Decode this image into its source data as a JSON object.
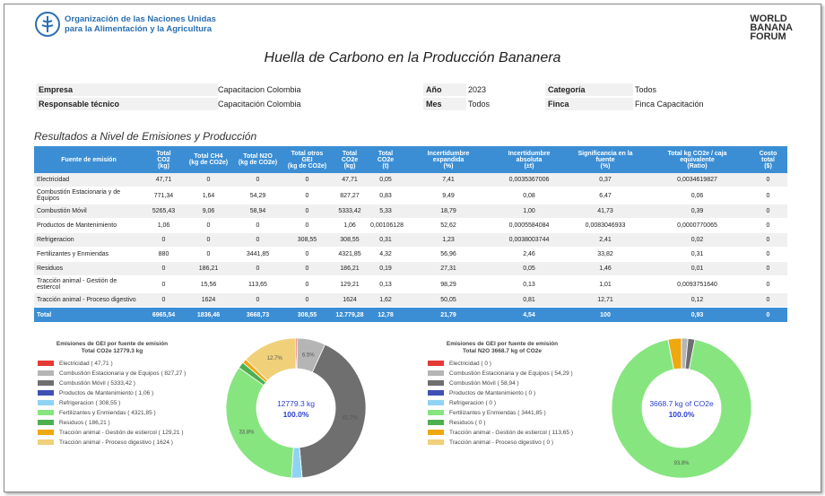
{
  "header": {
    "org_lines": [
      "Organización de las Naciones Unidas",
      "para la Alimentación y la Agricultura"
    ],
    "logo_lines": [
      "WORLD",
      "BANANA",
      "FORUM"
    ]
  },
  "title": "Huella de Carbono en la Producción Bananera",
  "info": {
    "rows": [
      [
        {
          "label": "Empresa",
          "value": "Capacitacion Colombia"
        },
        {
          "label": "Año",
          "value": "2023"
        },
        {
          "label": "Categoría",
          "value": "Todos"
        }
      ],
      [
        {
          "label": "Responsable técnico",
          "value": "Capacitación Colombia"
        },
        {
          "label": "Mes",
          "value": "Todos"
        },
        {
          "label": "Finca",
          "value": "Finca Capacitación"
        }
      ]
    ]
  },
  "section_title": "Resultados a Nivel de Emisiones y Producción",
  "table": {
    "columns": [
      "Fuente de emisión",
      "Total\nCO2\n(kg)",
      "Total CH4\n(kg de CO2e)",
      "Total N2O\n(kg de CO2e)",
      "Total otros\nGEI\n(kg de CO2e)",
      "Total\nCO2e\n(kg)",
      "Total\nCO2e\n(t)",
      "Incertidumbre\nexpandida\n(%)",
      "Incertidumbre\nabsoluta\n(±t)",
      "Significancia en la\nfuente\n(%)",
      "Total kg CO2e / caja\nequivalente\n(Ratio)",
      "Costo\ntotal\n($)"
    ],
    "rows": [
      [
        "Electricidad",
        "47,71",
        "0",
        "0",
        "0",
        "47,71",
        "0,05",
        "7,41",
        "0,0035367006",
        "0,37",
        "0,0034619827",
        "0"
      ],
      [
        "Combustión Estacionaria y de Equipos",
        "771,34",
        "1,64",
        "54,29",
        "0",
        "827,27",
        "0,83",
        "9,49",
        "0,08",
        "6,47",
        "0,06",
        "0"
      ],
      [
        "Combustión Móvil",
        "5265,43",
        "9,06",
        "58,94",
        "0",
        "5333,42",
        "5,33",
        "18,79",
        "1,00",
        "41,73",
        "0,39",
        "0"
      ],
      [
        "Productos de Mantenimiento",
        "1,06",
        "0",
        "0",
        "0",
        "1,06",
        "0,00106128",
        "52,62",
        "0,0005584084",
        "0,0083046933",
        "0,0000770065",
        "0"
      ],
      [
        "Refrigeracion",
        "0",
        "0",
        "0",
        "308,55",
        "308,55",
        "0,31",
        "1,23",
        "0,0038003744",
        "2,41",
        "0,02",
        "0"
      ],
      [
        "Fertilizantes y Enmiendas",
        "880",
        "0",
        "3441,85",
        "0",
        "4321,85",
        "4,32",
        "56,96",
        "2,46",
        "33,82",
        "0,31",
        "0"
      ],
      [
        "Residuos",
        "0",
        "186,21",
        "0",
        "0",
        "186,21",
        "0,19",
        "27,31",
        "0,05",
        "1,46",
        "0,01",
        "0"
      ],
      [
        "Tracción animal - Gestión de estiercol",
        "0",
        "15,56",
        "113,65",
        "0",
        "129,21",
        "0,13",
        "98,29",
        "0,13",
        "1,01",
        "0,0093751640",
        "0"
      ],
      [
        "Tracción animal - Proceso digestivo",
        "0",
        "1624",
        "0",
        "0",
        "1624",
        "1,62",
        "50,05",
        "0,81",
        "12,71",
        "0,12",
        "0"
      ]
    ],
    "total": [
      "Total",
      "6965,54",
      "1836,46",
      "3668,73",
      "308,55",
      "12.779,28",
      "12,78",
      "21,79",
      "4,54",
      "100",
      "0,93",
      "0"
    ]
  },
  "chart_data": [
    {
      "type": "pie",
      "title": [
        "Emisiones de GEI por fuente de emisión",
        "Total CO2e   12779.3 kg"
      ],
      "categories": [
        "Electricidad  ( 47,71 )",
        "Combustión Estacionaria y de Equipos  ( 827,27 )",
        "Combustión Móvil  ( 5333,42 )",
        "Productos de Mantenimiento  ( 1,06 )",
        "Refrigeracion  ( 308,55 )",
        "Fertilizantes y Enmiendas  ( 4321,85 )",
        "Residuos  ( 186,21 )",
        "Tracción animal - Gestión de estiercol  ( 129,21 )",
        "Tracción animal - Proceso digestivo  ( 1624 )"
      ],
      "values": [
        47.71,
        827.27,
        5333.42,
        1.06,
        308.55,
        4321.85,
        186.21,
        129.21,
        1624
      ],
      "colors": [
        "#e53935",
        "#b5b5b5",
        "#6f6f6f",
        "#3f51b5",
        "#8fd3f4",
        "#86e57f",
        "#4caf50",
        "#efa810",
        "#f1d07a"
      ],
      "percent_labels": [
        null,
        "6.5%",
        "41.7%",
        null,
        null,
        "33.8%",
        null,
        null,
        "12.7%"
      ],
      "center_value": "12779.3 kg",
      "center_percent": "100.0%"
    },
    {
      "type": "pie",
      "title": [
        "Emisiones de GEI por fuente de emisión",
        "Total N2O   3668.7 kg of CO2e"
      ],
      "categories": [
        "Electricidad  ( 0 )",
        "Combustión Estacionaria y de Equipos  ( 54,29 )",
        "Combustión Móvil  ( 58,94 )",
        "Productos de Mantenimiento  ( 0 )",
        "Refrigeracion  ( 0 )",
        "Fertilizantes y Enmiendas  ( 3441,85 )",
        "Residuos  ( 0 )",
        "Tracción animal - Gestión de estiercol  ( 113,65 )",
        "Tracción animal - Proceso digestivo  ( 0 )"
      ],
      "values": [
        0,
        54.29,
        58.94,
        0,
        0,
        3441.85,
        0,
        113.65,
        0
      ],
      "colors": [
        "#e53935",
        "#b5b5b5",
        "#6f6f6f",
        "#3f51b5",
        "#8fd3f4",
        "#86e57f",
        "#4caf50",
        "#efa810",
        "#f1d07a"
      ],
      "percent_labels": [
        null,
        null,
        null,
        null,
        null,
        "93.8%",
        null,
        null,
        null
      ],
      "center_value": "3668.7 kg of CO2e",
      "center_percent": "100.0%"
    }
  ]
}
